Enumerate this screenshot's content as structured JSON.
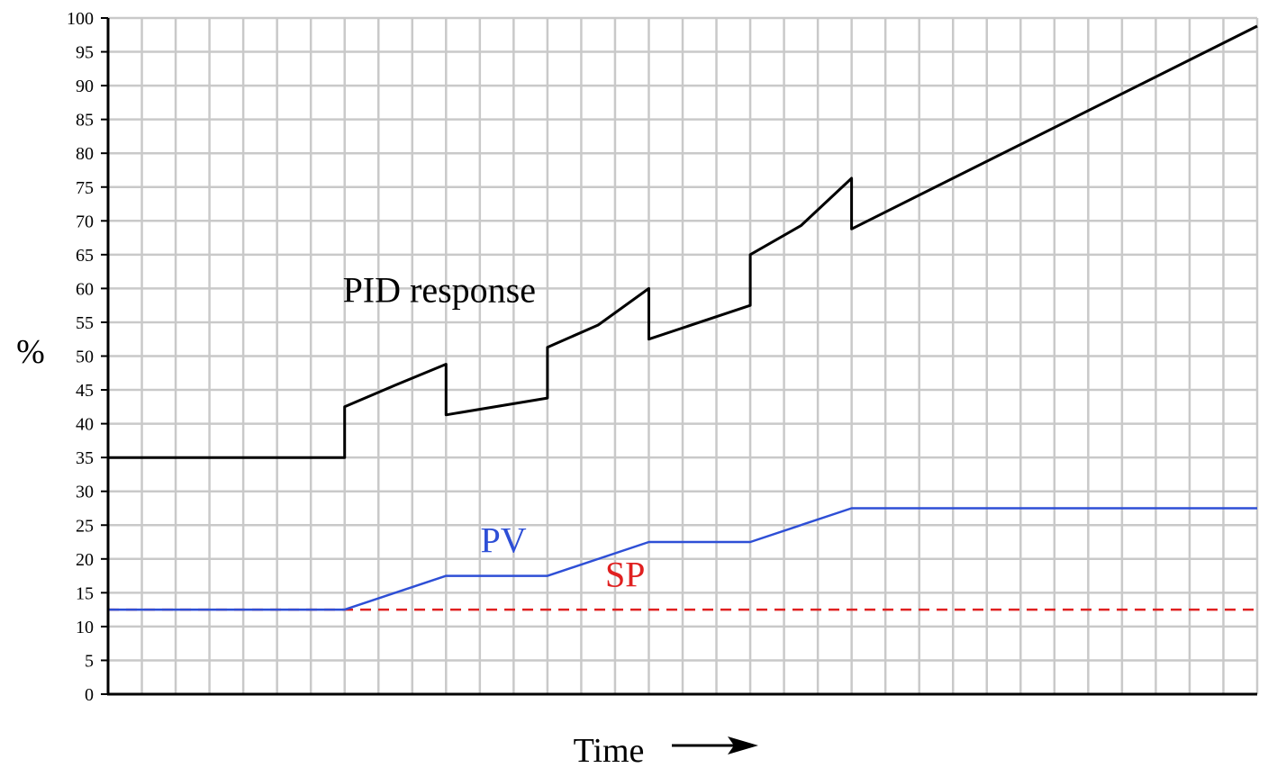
{
  "chart_data": {
    "type": "line",
    "title": "",
    "xlabel": "Time",
    "ylabel": "%",
    "xlim": [
      0,
      34
    ],
    "ylim": [
      0,
      100
    ],
    "yticks": [
      0,
      5,
      10,
      15,
      20,
      25,
      30,
      35,
      40,
      45,
      50,
      55,
      60,
      65,
      70,
      75,
      80,
      85,
      90,
      95,
      100
    ],
    "grid": true,
    "legend": "none",
    "colors": {
      "pid": "#000000",
      "pv": "#2e4fd6",
      "sp": "#e02020",
      "grid": "#c9c9c9"
    },
    "series": [
      {
        "name": "PID response",
        "color": "#000000",
        "style": "solid",
        "points": [
          [
            0,
            35
          ],
          [
            7,
            35
          ],
          [
            7,
            42.5
          ],
          [
            8.5,
            45.7
          ],
          [
            10,
            48.8
          ],
          [
            10,
            41.3
          ],
          [
            13,
            43.8
          ],
          [
            13,
            51.3
          ],
          [
            14.5,
            54.6
          ],
          [
            16,
            60
          ],
          [
            16,
            52.5
          ],
          [
            19,
            57.5
          ],
          [
            19,
            65
          ],
          [
            20.5,
            69.3
          ],
          [
            22,
            76.3
          ],
          [
            22,
            68.8
          ],
          [
            34,
            98.8
          ]
        ]
      },
      {
        "name": "PV",
        "color": "#2e4fd6",
        "style": "solid",
        "points": [
          [
            0,
            12.5
          ],
          [
            7,
            12.5
          ],
          [
            10,
            17.5
          ],
          [
            13,
            17.5
          ],
          [
            16,
            22.5
          ],
          [
            19,
            22.5
          ],
          [
            22,
            27.5
          ],
          [
            34,
            27.5
          ]
        ]
      },
      {
        "name": "SP",
        "color": "#e02020",
        "style": "dashed",
        "points": [
          [
            0,
            12.5
          ],
          [
            34,
            12.5
          ]
        ]
      }
    ],
    "annotations": [
      {
        "text": "PID response",
        "x": 9.8,
        "y": 58,
        "color": "#000000"
      },
      {
        "text": "PV",
        "x": 11.7,
        "y": 21,
        "color": "#2e4fd6"
      },
      {
        "text": "SP",
        "x": 15.3,
        "y": 15.9,
        "color": "#e02020"
      }
    ]
  }
}
